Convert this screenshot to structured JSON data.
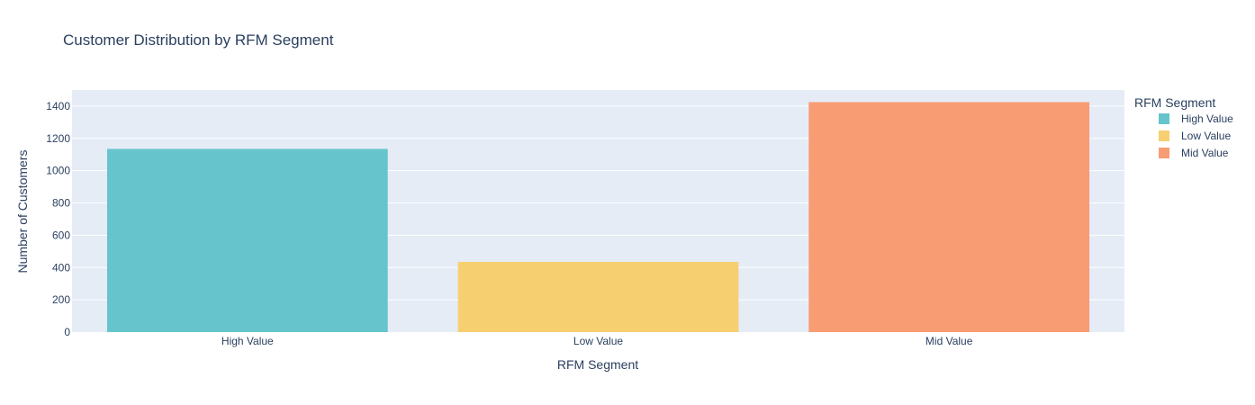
{
  "chart_data": {
    "type": "bar",
    "title": "Customer Distribution by RFM Segment",
    "xlabel": "RFM Segment",
    "ylabel": "Number of Customers",
    "categories": [
      "High Value",
      "Low Value",
      "Mid Value"
    ],
    "values": [
      1135,
      435,
      1425
    ],
    "colors": [
      "#66c5cc",
      "#f6cf71",
      "#f89c74"
    ],
    "ylim": [
      0,
      1500
    ],
    "yticks": [
      0,
      200,
      400,
      600,
      800,
      1000,
      1200,
      1400
    ],
    "grid": true,
    "legend": {
      "title": "RFM Segment",
      "placement": "right",
      "entries": [
        "High Value",
        "Low Value",
        "Mid Value"
      ]
    },
    "colors_theme": {
      "plot_bg": "#e5ecf6",
      "grid": "#ffffff",
      "text": "#2a3f5f"
    }
  }
}
